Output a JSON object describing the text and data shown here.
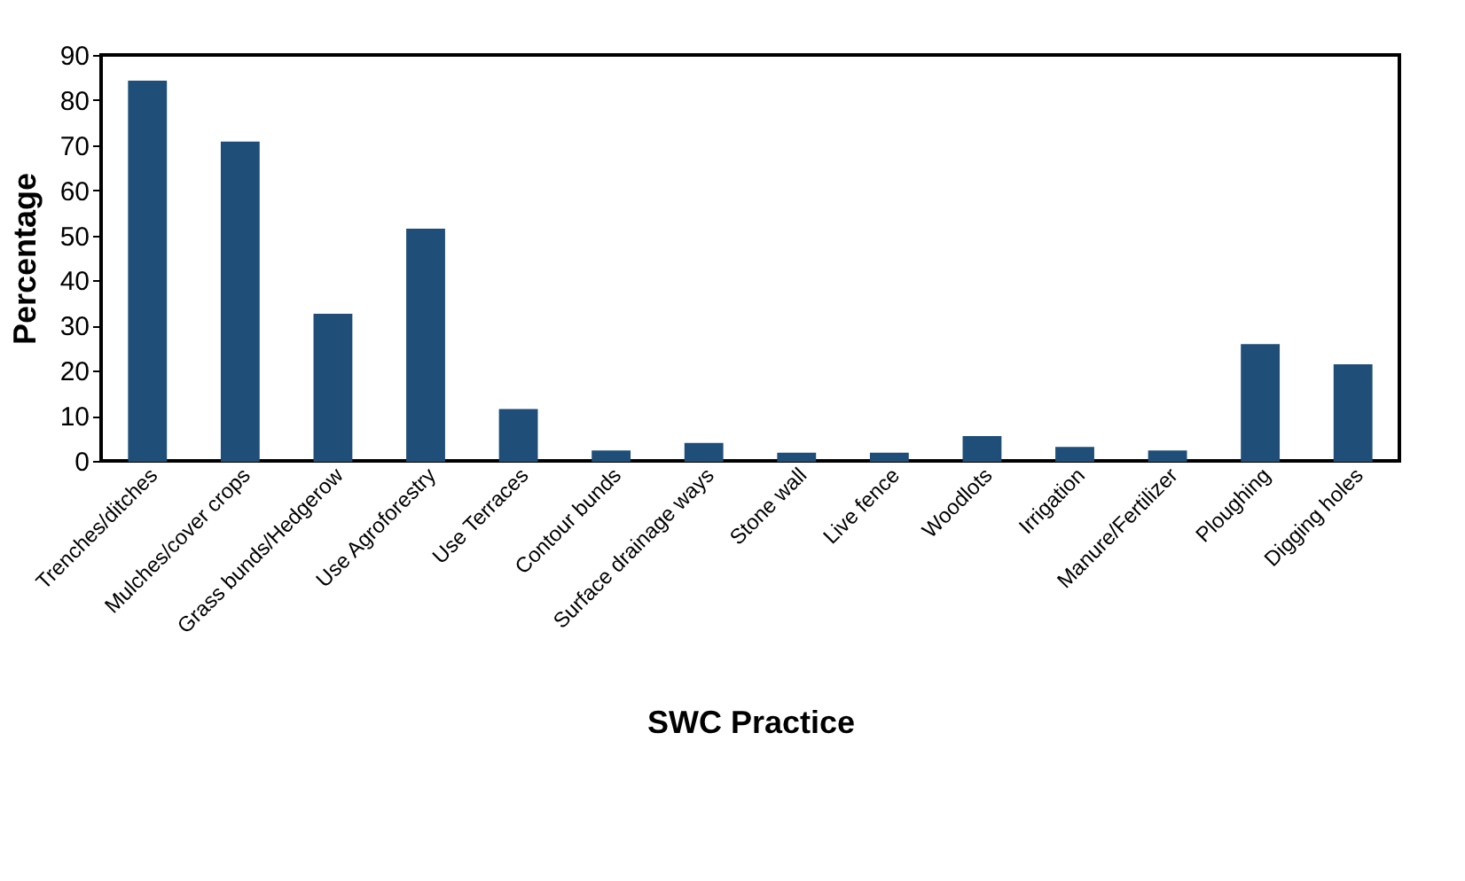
{
  "chart_data": {
    "type": "bar",
    "xlabel": "SWC Practice",
    "ylabel": "Percentage",
    "categories": [
      "Trenches/ditches",
      "Mulches/cover crops",
      "Grass bunds/Hedgerow",
      "Use Agroforestry",
      "Use Terraces",
      "Contour bunds",
      "Surface drainage ways",
      "Stone wall",
      "Live fence",
      "Woodlots",
      "Irrigation",
      "Manure/Fertilizer",
      "Ploughing",
      "Digging holes"
    ],
    "values": [
      84.1,
      70.6,
      32.4,
      51.3,
      11.3,
      2.1,
      3.8,
      1.6,
      1.6,
      5.3,
      2.9,
      2.1,
      25.7,
      21.2
    ],
    "color": "#1f4e79",
    "ylim": [
      0,
      90
    ],
    "yticks": [
      0,
      10,
      20,
      30,
      40,
      50,
      60,
      70,
      80,
      90
    ],
    "grid": false
  }
}
